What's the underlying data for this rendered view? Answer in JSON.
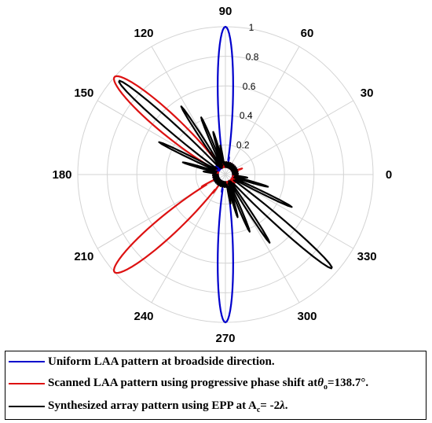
{
  "chart_data": {
    "type": "polar-line",
    "title": "",
    "angle_ticks": [
      "0",
      "30",
      "60",
      "90",
      "120",
      "150",
      "180",
      "210",
      "240",
      "270",
      "300",
      "330"
    ],
    "radial_ticks": [
      "0.2",
      "0.4",
      "0.6",
      "0.8",
      "1"
    ],
    "rlim": [
      0,
      1
    ],
    "grid": true,
    "legend_position": "bottom",
    "series": [
      {
        "name": "Uniform LAA pattern at broadside direction.",
        "color": "#0000cc",
        "main_lobes": [
          {
            "angle_deg": 90,
            "magnitude": 1.0,
            "beamwidth_deg": 7
          },
          {
            "angle_deg": 270,
            "magnitude": 1.0,
            "beamwidth_deg": 7
          }
        ],
        "side_lobes": [
          {
            "angle_deg": 82,
            "magnitude": 0.2
          },
          {
            "angle_deg": 98,
            "magnitude": 0.2
          },
          {
            "angle_deg": 78,
            "magnitude": 0.12
          },
          {
            "angle_deg": 102,
            "magnitude": 0.12
          },
          {
            "angle_deg": 262,
            "magnitude": 0.2
          },
          {
            "angle_deg": 278,
            "magnitude": 0.2
          },
          {
            "angle_deg": 258,
            "magnitude": 0.12
          },
          {
            "angle_deg": 282,
            "magnitude": 0.12
          }
        ]
      },
      {
        "name_parts": [
          "Scanned LAA pattern using progressive phase shift at",
          "θ",
          "o",
          "=138.7°."
        ],
        "color": "#dd1111",
        "main_lobes": [
          {
            "angle_deg": 138.7,
            "magnitude": 1.0,
            "beamwidth_deg": 9.5
          },
          {
            "angle_deg": 221.3,
            "magnitude": 1.0,
            "beamwidth_deg": 9.5
          }
        ],
        "side_lobes": [
          {
            "angle_deg": 124,
            "magnitude": 0.18
          },
          {
            "angle_deg": 153,
            "magnitude": 0.15
          },
          {
            "angle_deg": 236,
            "magnitude": 0.15
          },
          {
            "angle_deg": 207,
            "magnitude": 0.18
          },
          {
            "angle_deg": 20,
            "magnitude": 0.12
          },
          {
            "angle_deg": 340,
            "magnitude": 0.12
          }
        ]
      },
      {
        "name_parts": [
          "Synthesized array pattern using EPP at A",
          "c",
          "= -2",
          "λ",
          "."
        ],
        "color": "#000000",
        "main_lobes": [
          {
            "angle_deg": 138.7,
            "magnitude": 0.96,
            "beamwidth_deg": 4.2
          },
          {
            "angle_deg": 318.7,
            "magnitude": 0.96,
            "beamwidth_deg": 4.2
          }
        ],
        "side_lobes": [
          {
            "angle_deg": 123,
            "magnitude": 0.55
          },
          {
            "angle_deg": 113,
            "magnitude": 0.42
          },
          {
            "angle_deg": 106,
            "magnitude": 0.3
          },
          {
            "angle_deg": 100,
            "magnitude": 0.2
          },
          {
            "angle_deg": 154,
            "magnitude": 0.5
          },
          {
            "angle_deg": 164,
            "magnitude": 0.3
          },
          {
            "angle_deg": 172,
            "magnitude": 0.15
          },
          {
            "angle_deg": 303,
            "magnitude": 0.55
          },
          {
            "angle_deg": 293,
            "magnitude": 0.42
          },
          {
            "angle_deg": 286,
            "magnitude": 0.3
          },
          {
            "angle_deg": 280,
            "magnitude": 0.2
          },
          {
            "angle_deg": 334,
            "magnitude": 0.5
          },
          {
            "angle_deg": 344,
            "magnitude": 0.3
          },
          {
            "angle_deg": 352,
            "magnitude": 0.15
          }
        ]
      }
    ]
  }
}
